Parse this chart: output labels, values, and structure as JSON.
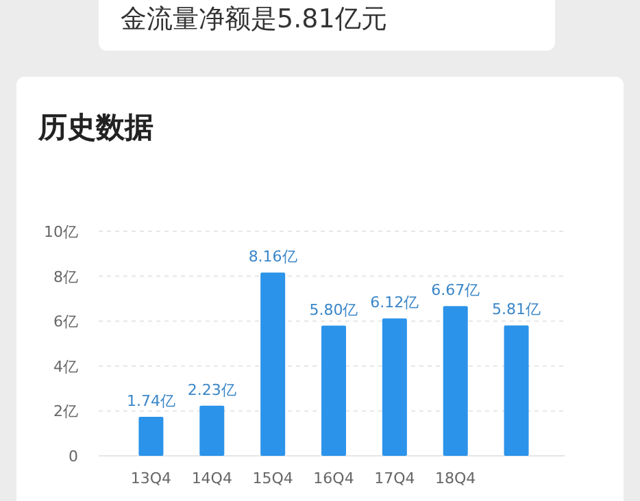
{
  "chart_data": {
    "type": "bar",
    "title": "历史数据",
    "annotations": [
      "金流量净额是5.81亿元"
    ],
    "categories": [
      "13Q4",
      "14Q4",
      "15Q4",
      "16Q4",
      "17Q4",
      "18Q4",
      null
    ],
    "values": [
      1.74,
      2.23,
      8.16,
      5.8,
      6.12,
      6.67,
      5.81
    ],
    "value_labels": [
      "1.74亿",
      "2.23亿",
      "8.16亿",
      "5.80亿",
      "6.12亿",
      "6.67亿",
      "5.81亿"
    ],
    "color": "#2b93ea",
    "ylim": [
      0,
      10
    ],
    "yticks": [
      0,
      {
        "value": 2,
        "label": "2亿"
      },
      {
        "value": 4,
        "label": "4亿"
      },
      {
        "value": 6,
        "label": "6亿"
      },
      {
        "value": 8,
        "label": "8亿"
      },
      {
        "value": 10,
        "label": "10亿"
      }
    ],
    "grid": "y"
  }
}
